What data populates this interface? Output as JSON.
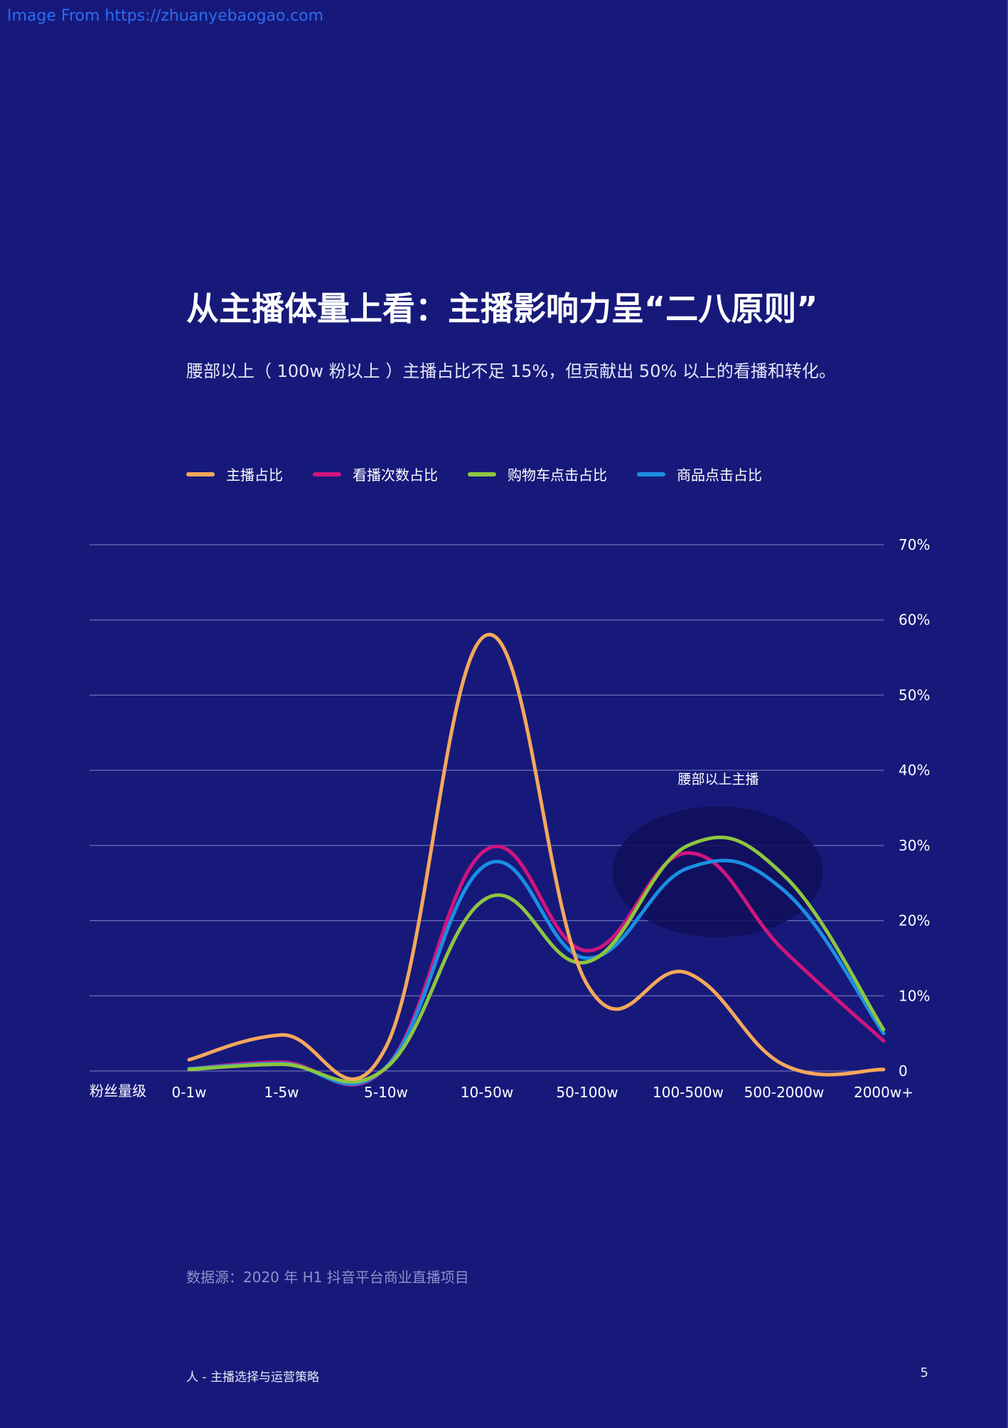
{
  "watermark": "Image From https://zhuanyebaogao.com",
  "header": {
    "title": "从主播体量上看：主播影响力呈“二八原则”",
    "subtitle": "腰部以上（ 100w 粉以上 ）主播占比不足 15%，但贡献出 50% 以上的看播和转化。"
  },
  "colors": {
    "background": "#17197a",
    "grid": "#8b8dd0",
    "highlight": "#100f5a"
  },
  "chart_data": {
    "type": "line",
    "smooth": true,
    "categories": [
      "0-1w",
      "1-5w",
      "5-10w",
      "10-50w",
      "50-100w",
      "100-500w",
      "500-2000w",
      "2000w+"
    ],
    "xlabel": "粉丝量级",
    "ylabel": "",
    "ylim": [
      0,
      70
    ],
    "y_ticks": [
      0,
      10,
      20,
      30,
      40,
      50,
      60,
      70
    ],
    "y_tick_labels": [
      "0",
      "10%",
      "20%",
      "30%",
      "40%",
      "50%",
      "60%",
      "70%"
    ],
    "y_axis_side": "right",
    "grid": true,
    "legend_position": "top-left",
    "series": [
      {
        "name": "主播占比",
        "color": "#f5a85b",
        "values": [
          1.5,
          4.8,
          3.2,
          58,
          11.5,
          13,
          0.8,
          0.2
        ]
      },
      {
        "name": "看播次数占比",
        "color": "#d0157e",
        "values": [
          0.3,
          1.2,
          0.5,
          29.5,
          16,
          29,
          16,
          4
        ]
      },
      {
        "name": "购物车点击占比",
        "color": "#8dc63f",
        "values": [
          0.2,
          0.9,
          0.4,
          23,
          14.5,
          30,
          26,
          5.5
        ]
      },
      {
        "name": "商品点击占比",
        "color": "#1a8fe3",
        "values": [
          0.3,
          1.0,
          0.5,
          27.5,
          15,
          27,
          24,
          5
        ]
      }
    ],
    "annotations": [
      {
        "text": "腰部以上主播",
        "categories": [
          "100-500w",
          "500-2000w"
        ]
      }
    ]
  },
  "footer": {
    "source": "数据源：2020 年 H1 抖音平台商业直播项目",
    "section": "人 - 主播选择与运营策略",
    "page_number": "5"
  }
}
